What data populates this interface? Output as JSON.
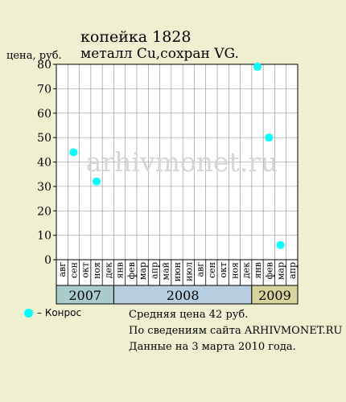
{
  "title": "копейка 1828",
  "subtitle": "металл Cu,сохран VG.",
  "watermark": "arhivmonet.ru",
  "legend": {
    "label": "– Конрос",
    "color": "#00ffff"
  },
  "info": {
    "avg": "Средняя цена 42 руб.",
    "source": "По  сведениям сайта ARHIVMONET.RU",
    "date": "Данные на 3 марта 2010 года."
  },
  "colors": {
    "background": "#efefd1",
    "plot_background": "#ffffff",
    "grid": "#888888",
    "point": "#00ffff",
    "year_2007": "#a9cbc9",
    "year_2008": "#b7cde0",
    "year_2009": "#d8d39c"
  },
  "chart_data": {
    "type": "scatter",
    "ylabel": "цена, руб.",
    "ylim": [
      0,
      80
    ],
    "yticks": [
      0,
      10,
      20,
      30,
      40,
      50,
      60,
      70,
      80
    ],
    "grid": true,
    "categories": [
      "авг",
      "сен",
      "окт",
      "ноя",
      "дек",
      "янв",
      "фев",
      "мар",
      "апр",
      "май",
      "июн",
      "июл",
      "авг",
      "сен",
      "окт",
      "ноя",
      "дек",
      "янв",
      "фев",
      "мар",
      "апр"
    ],
    "years": [
      {
        "label": "2007",
        "start": 0,
        "count": 5
      },
      {
        "label": "2008",
        "start": 5,
        "count": 12
      },
      {
        "label": "2009",
        "start": 17,
        "count": 4
      }
    ],
    "series": [
      {
        "name": "Конрос",
        "points": [
          {
            "category_index": 1,
            "value": 44
          },
          {
            "category_index": 3,
            "value": 32
          },
          {
            "category_index": 17,
            "value": 79
          },
          {
            "category_index": 18,
            "value": 50
          },
          {
            "category_index": 19,
            "value": 6
          }
        ]
      }
    ]
  }
}
